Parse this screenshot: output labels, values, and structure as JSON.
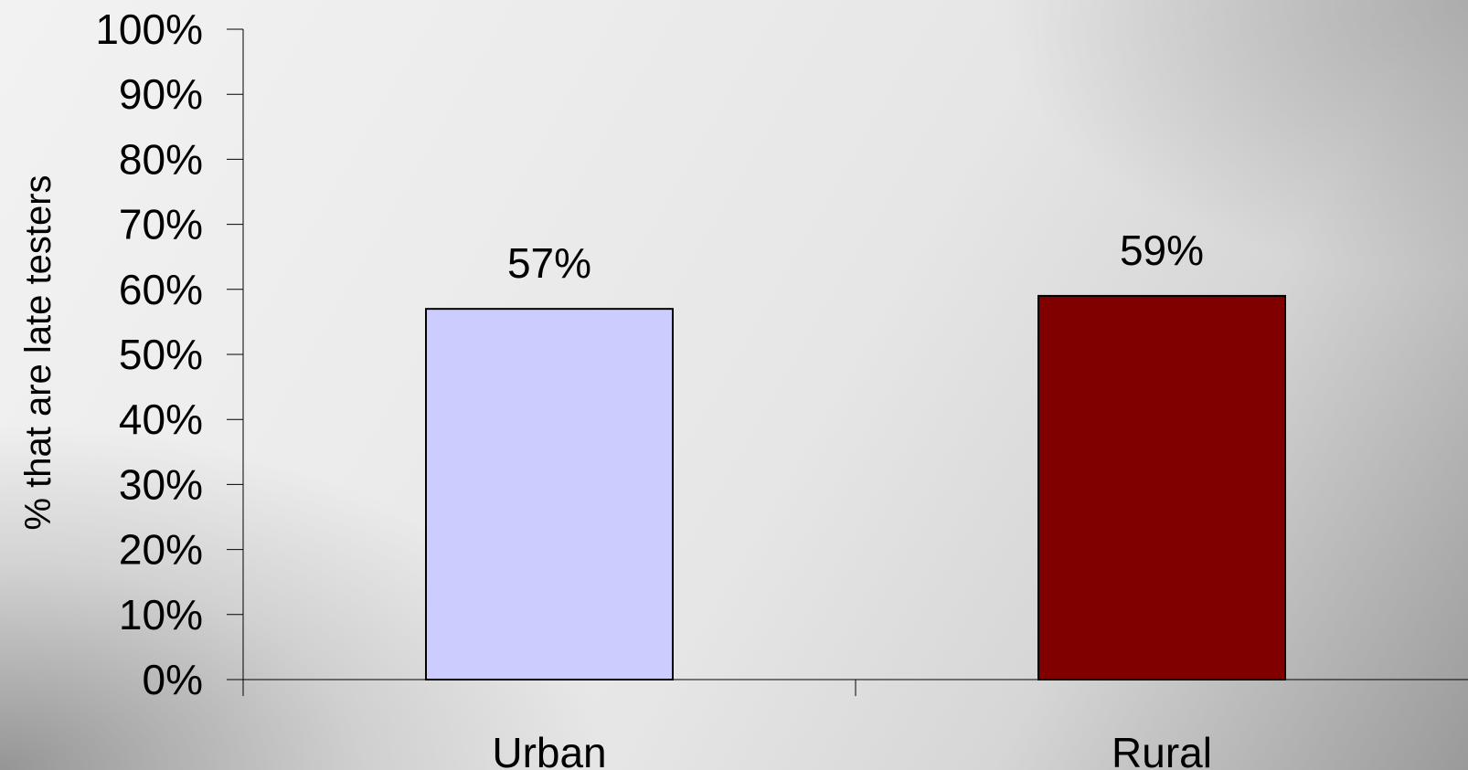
{
  "chart_data": {
    "type": "bar",
    "title": "",
    "xlabel": "",
    "ylabel": "% that are late testers",
    "categories": [
      "Urban",
      "Rural"
    ],
    "values": [
      57,
      59
    ],
    "data_labels": [
      "57%",
      "59%"
    ],
    "bar_colors": [
      "#ccccff",
      "#800000"
    ],
    "ylim": [
      0,
      100
    ],
    "yticks": [
      0,
      10,
      20,
      30,
      40,
      50,
      60,
      70,
      80,
      90,
      100
    ],
    "ytick_labels": [
      "0%",
      "10%",
      "20%",
      "30%",
      "40%",
      "50%",
      "60%",
      "70%",
      "80%",
      "90%",
      "100%"
    ],
    "grid": false,
    "legend": "none"
  }
}
